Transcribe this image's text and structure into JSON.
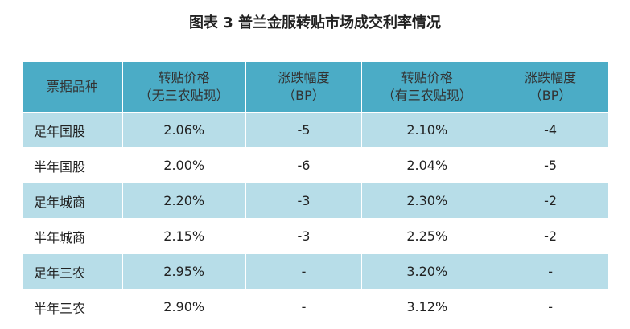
{
  "title": "图表 3  普兰金服转贴市场成交利率情况",
  "table": {
    "header": [
      [
        "票据品种"
      ],
      [
        "转贴价格",
        "（无三农贴现）"
      ],
      [
        "涨跌幅度",
        "（BP）"
      ],
      [
        "转贴价格",
        "（有三农贴现）"
      ],
      [
        "涨跌幅度",
        "（BP）"
      ]
    ],
    "rows": [
      [
        "足年国股",
        "2.06%",
        "-5",
        "2.10%",
        "-4"
      ],
      [
        "半年国股",
        "2.00%",
        "-6",
        "2.04%",
        "-5"
      ],
      [
        "足年城商",
        "2.20%",
        "-3",
        "2.30%",
        "-2"
      ],
      [
        "半年城商",
        "2.15%",
        "-3",
        "2.25%",
        "-2"
      ],
      [
        "足年三农",
        "2.95%",
        "-",
        "3.20%",
        "-"
      ],
      [
        "半年三农",
        "2.90%",
        "-",
        "3.12%",
        "-"
      ]
    ]
  }
}
